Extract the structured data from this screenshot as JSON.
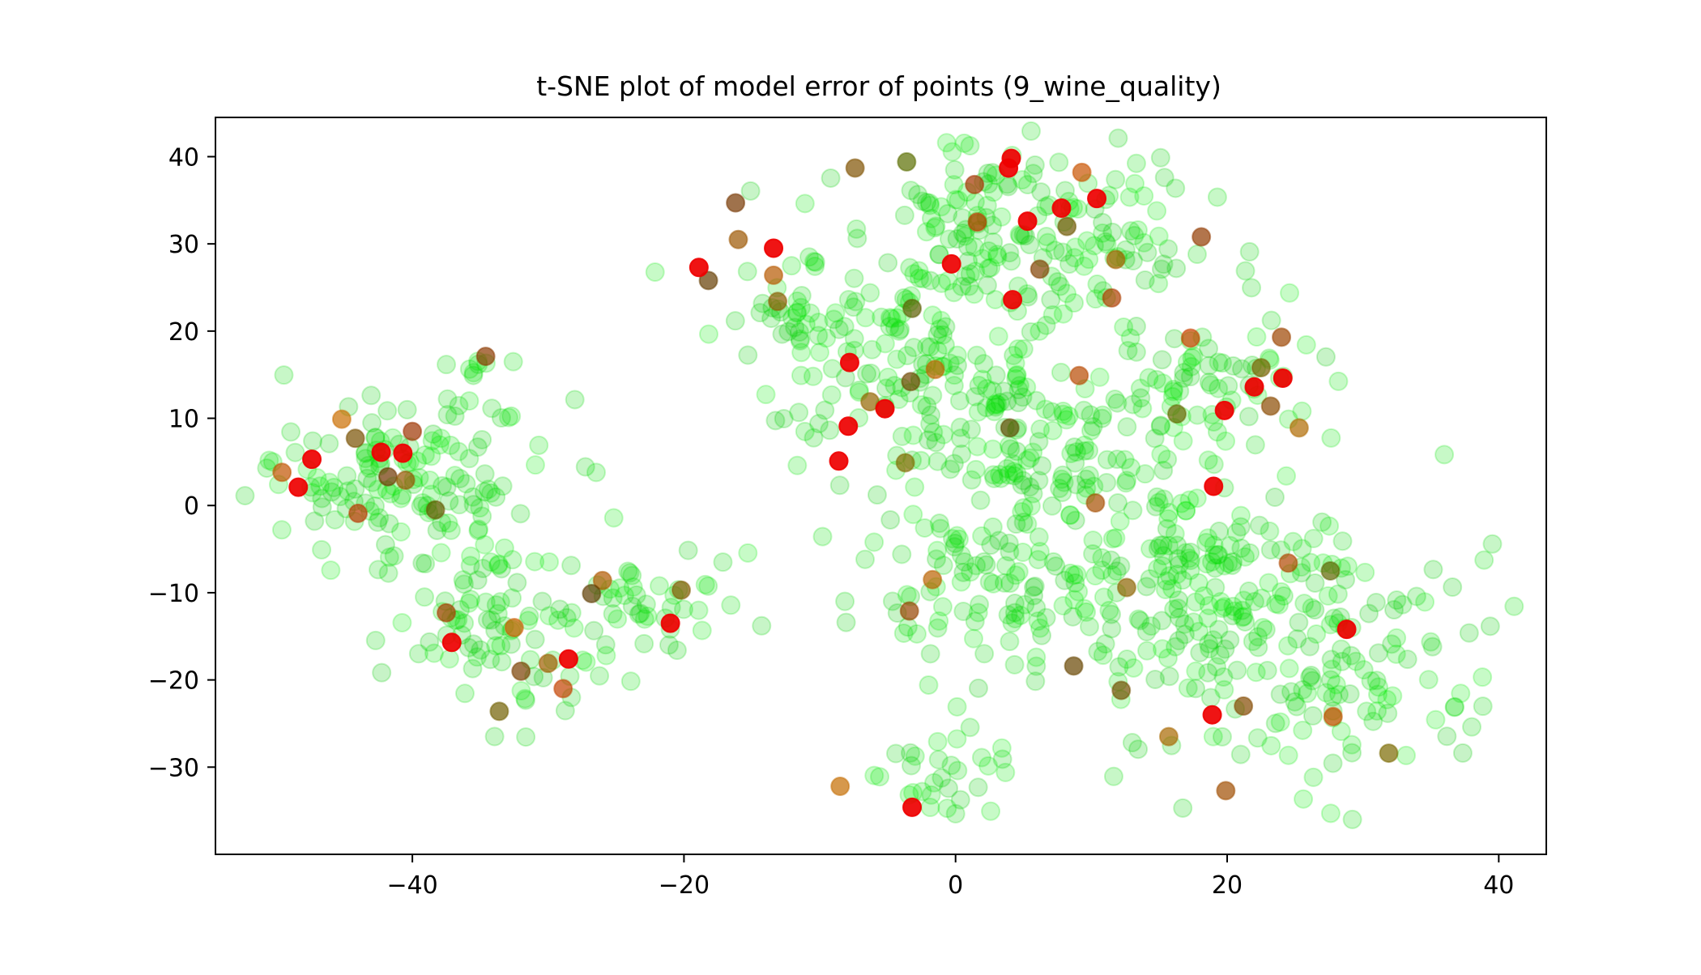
{
  "chart_data": {
    "type": "scatter",
    "title": "t-SNE plot of model error of points (9_wine_quality)",
    "xlabel": "",
    "ylabel": "",
    "xlim": [
      -54.5,
      43.5
    ],
    "ylim": [
      -40,
      44.5
    ],
    "x_ticks": [
      -40,
      -20,
      0,
      20,
      40
    ],
    "y_ticks": [
      -30,
      -20,
      -10,
      0,
      10,
      20,
      30,
      40
    ],
    "x_tick_labels": [
      "−40",
      "−20",
      "0",
      "20",
      "40"
    ],
    "y_tick_labels": [
      "−30",
      "−20",
      "−10",
      "0",
      "10",
      "20",
      "30",
      "40"
    ],
    "grid": false,
    "legend": "none",
    "color_encoding": "model error: green = low error, red = high error",
    "colors": {
      "low_error": "#00ee00",
      "mid_error": "#6e6e00",
      "high_error": "#ee0000"
    },
    "high_error_points": [
      {
        "x": 4.1,
        "y": 39.8
      },
      {
        "x": 3.9,
        "y": 38.7
      },
      {
        "x": 7.8,
        "y": 34.1
      },
      {
        "x": 5.3,
        "y": 32.6
      },
      {
        "x": 10.4,
        "y": 35.2
      },
      {
        "x": -18.9,
        "y": 27.3
      },
      {
        "x": -13.4,
        "y": 29.5
      },
      {
        "x": -0.3,
        "y": 27.7
      },
      {
        "x": 4.2,
        "y": 23.6
      },
      {
        "x": -7.8,
        "y": 16.4
      },
      {
        "x": 24.1,
        "y": 14.6
      },
      {
        "x": 22.0,
        "y": 13.6
      },
      {
        "x": 19.8,
        "y": 10.9
      },
      {
        "x": -5.2,
        "y": 11.1
      },
      {
        "x": -7.9,
        "y": 9.1
      },
      {
        "x": -8.6,
        "y": 5.1
      },
      {
        "x": 19.0,
        "y": 2.2
      },
      {
        "x": -40.7,
        "y": 6.0
      },
      {
        "x": -42.3,
        "y": 6.1
      },
      {
        "x": -47.4,
        "y": 5.3
      },
      {
        "x": -48.4,
        "y": 2.1
      },
      {
        "x": -21.0,
        "y": -13.5
      },
      {
        "x": -28.5,
        "y": -17.6
      },
      {
        "x": -37.1,
        "y": -15.7
      },
      {
        "x": -3.2,
        "y": -34.6
      },
      {
        "x": 28.8,
        "y": -14.2
      },
      {
        "x": 18.9,
        "y": -24.0
      }
    ],
    "mid_error_points": [
      {
        "x": -3.6,
        "y": 39.4
      },
      {
        "x": -7.4,
        "y": 38.7
      },
      {
        "x": 1.4,
        "y": 36.8
      },
      {
        "x": 9.3,
        "y": 38.2
      },
      {
        "x": -16.2,
        "y": 34.7
      },
      {
        "x": -16.0,
        "y": 30.5
      },
      {
        "x": 1.6,
        "y": 32.5
      },
      {
        "x": 8.2,
        "y": 32.0
      },
      {
        "x": 18.1,
        "y": 30.8
      },
      {
        "x": -13.4,
        "y": 26.4
      },
      {
        "x": -18.2,
        "y": 25.8
      },
      {
        "x": -13.1,
        "y": 23.4
      },
      {
        "x": 11.5,
        "y": 23.8
      },
      {
        "x": -3.2,
        "y": 22.6
      },
      {
        "x": 6.2,
        "y": 27.1
      },
      {
        "x": 11.8,
        "y": 28.2
      },
      {
        "x": 17.3,
        "y": 19.2
      },
      {
        "x": 22.5,
        "y": 15.8
      },
      {
        "x": 24.0,
        "y": 19.3
      },
      {
        "x": -1.5,
        "y": 15.6
      },
      {
        "x": -3.3,
        "y": 14.2
      },
      {
        "x": -6.3,
        "y": 11.9
      },
      {
        "x": 9.1,
        "y": 14.9
      },
      {
        "x": 16.3,
        "y": 10.5
      },
      {
        "x": 23.2,
        "y": 11.4
      },
      {
        "x": 25.3,
        "y": 8.9
      },
      {
        "x": 4.0,
        "y": 8.9
      },
      {
        "x": -3.7,
        "y": 4.9
      },
      {
        "x": 10.3,
        "y": 0.3
      },
      {
        "x": -45.2,
        "y": 9.9
      },
      {
        "x": -44.2,
        "y": 7.7
      },
      {
        "x": -40.0,
        "y": 8.5
      },
      {
        "x": -49.6,
        "y": 3.8
      },
      {
        "x": -41.8,
        "y": 3.3
      },
      {
        "x": -40.5,
        "y": 2.9
      },
      {
        "x": -44.0,
        "y": -0.9
      },
      {
        "x": -38.3,
        "y": -0.5
      },
      {
        "x": -34.6,
        "y": 17.1
      },
      {
        "x": -26.0,
        "y": -8.6
      },
      {
        "x": -26.8,
        "y": -10.1
      },
      {
        "x": -20.2,
        "y": -9.7
      },
      {
        "x": -37.5,
        "y": -12.3
      },
      {
        "x": -32.5,
        "y": -14.0
      },
      {
        "x": -32.0,
        "y": -19.0
      },
      {
        "x": -30.0,
        "y": -18.1
      },
      {
        "x": -28.9,
        "y": -21.0
      },
      {
        "x": -33.6,
        "y": -23.6
      },
      {
        "x": -3.4,
        "y": -12.1
      },
      {
        "x": -1.7,
        "y": -8.5
      },
      {
        "x": 8.7,
        "y": -18.4
      },
      {
        "x": 12.6,
        "y": -9.4
      },
      {
        "x": 24.5,
        "y": -6.6
      },
      {
        "x": 27.6,
        "y": -7.5
      },
      {
        "x": 21.2,
        "y": -23.0
      },
      {
        "x": 15.7,
        "y": -26.5
      },
      {
        "x": 27.8,
        "y": -24.2
      },
      {
        "x": 31.9,
        "y": -28.4
      },
      {
        "x": 19.9,
        "y": -32.7
      },
      {
        "x": -8.5,
        "y": -32.2
      },
      {
        "x": 12.2,
        "y": -21.2
      }
    ],
    "low_error_clusters": [
      {
        "cx": -41,
        "cy": 3.5,
        "sx": 5.5,
        "sy": 4.5,
        "n": 130
      },
      {
        "cx": -34.5,
        "cy": -12,
        "sx": 3.5,
        "sy": 6.0,
        "n": 80
      },
      {
        "cx": -27,
        "cy": -13,
        "sx": 4.5,
        "sy": 4.0,
        "n": 45
      },
      {
        "cx": -35.5,
        "cy": 15.5,
        "sx": 1.5,
        "sy": 1.5,
        "n": 8
      },
      {
        "cx": -21,
        "cy": -12,
        "sx": 2.5,
        "sy": 4.0,
        "n": 8
      },
      {
        "cx": 2,
        "cy": 31,
        "sx": 6.0,
        "sy": 5.0,
        "n": 150
      },
      {
        "cx": -12,
        "cy": 22,
        "sx": 3.5,
        "sy": 4.0,
        "n": 40
      },
      {
        "cx": -3,
        "cy": 15,
        "sx": 6.0,
        "sy": 5.5,
        "n": 120
      },
      {
        "cx": 6,
        "cy": 4,
        "sx": 5.0,
        "sy": 6.0,
        "n": 110
      },
      {
        "cx": 18,
        "cy": 14,
        "sx": 4.5,
        "sy": 6.0,
        "n": 90
      },
      {
        "cx": 3,
        "cy": -10,
        "sx": 5.5,
        "sy": 5.0,
        "n": 100
      },
      {
        "cx": 18,
        "cy": -12,
        "sx": 5.0,
        "sy": 6.5,
        "n": 110
      },
      {
        "cx": 28,
        "cy": -18,
        "sx": 6.0,
        "sy": 7.0,
        "n": 120
      },
      {
        "cx": 23,
        "cy": -6,
        "sx": 4.0,
        "sy": 3.5,
        "n": 40
      },
      {
        "cx": -1,
        "cy": -31,
        "sx": 3.0,
        "sy": 2.5,
        "n": 30
      },
      {
        "cx": 14,
        "cy": 30,
        "sx": 2.5,
        "sy": 5.0,
        "n": 25
      }
    ]
  }
}
